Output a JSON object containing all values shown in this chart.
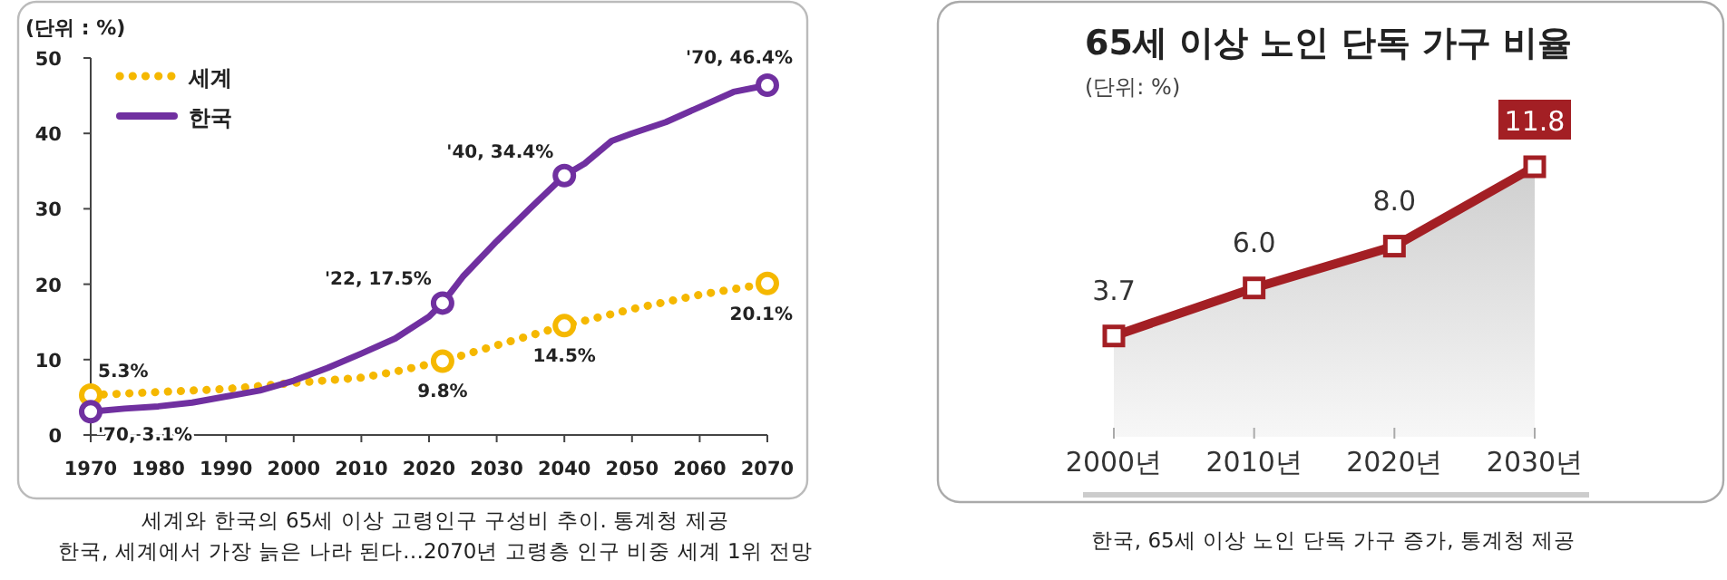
{
  "chart_data": [
    {
      "type": "line",
      "ylabel": "(단위 : %)",
      "x": [
        1970,
        1975,
        1980,
        1985,
        1990,
        1995,
        2000,
        2005,
        2010,
        2015,
        2020,
        2022,
        2025,
        2030,
        2035,
        2040,
        2043,
        2047,
        2050,
        2055,
        2060,
        2065,
        2070
      ],
      "xlim": [
        1970,
        2070
      ],
      "xticks": [
        1970,
        1980,
        1990,
        2000,
        2010,
        2020,
        2030,
        2040,
        2050,
        2060,
        2070
      ],
      "ylim": [
        0,
        50
      ],
      "yticks": [
        0,
        10,
        20,
        30,
        40,
        50
      ],
      "legend": "top left",
      "series": [
        {
          "name": "세계",
          "color": "#f5b800",
          "line_style": "dotted",
          "x": [
            1970,
            1980,
            1990,
            2000,
            2010,
            2015,
            2022,
            2030,
            2040,
            2050,
            2060,
            2070
          ],
          "values": [
            5.3,
            5.7,
            6.1,
            6.9,
            7.6,
            8.4,
            9.8,
            11.9,
            14.5,
            16.7,
            18.6,
            20.1
          ]
        },
        {
          "name": "한국",
          "color": "#7030a0",
          "line_style": "solid",
          "values": [
            3.1,
            3.5,
            3.8,
            4.3,
            5.1,
            5.9,
            7.2,
            8.9,
            10.8,
            12.8,
            15.7,
            17.5,
            21,
            25.7,
            30.1,
            34.4,
            36,
            39,
            40,
            41.5,
            43.5,
            45.5,
            46.4
          ]
        },
        {
          "type": "scatter",
          "color": "#f5b800",
          "marker": "circle",
          "x": [
            1970,
            2022,
            2040,
            2070
          ],
          "values": [
            5.3,
            9.8,
            14.5,
            20.1
          ]
        },
        {
          "type": "scatter",
          "color": "#7030a0",
          "marker": "circle",
          "x": [
            1970,
            2022,
            2040,
            2070
          ],
          "values": [
            3.1,
            17.5,
            34.4,
            46.4
          ]
        }
      ],
      "annotations": [
        {
          "text": "5.3%",
          "x": 1970,
          "y": 5.3
        },
        {
          "text": "'70, 3.1%",
          "x": 1970,
          "y": 3.1
        },
        {
          "text": "'22, 17.5%",
          "x": 2022,
          "y": 17.5
        },
        {
          "text": "9.8%",
          "x": 2022,
          "y": 9.8
        },
        {
          "text": "'40, 34.4%",
          "x": 2040,
          "y": 34.4
        },
        {
          "text": "14.5%",
          "x": 2040,
          "y": 14.5
        },
        {
          "text": "'70, 46.4%",
          "x": 2070,
          "y": 46.4
        },
        {
          "text": "20.1%",
          "x": 2070,
          "y": 20.1
        },
        "세계와 한국의 65세 이상 고령인구 구성비 추이. 통계청 제공",
        "한국, 세계에서 가장 늙은 나라 된다…2070년 고령층 인구 비중 세계 1위 전망"
      ]
    },
    {
      "type": "area",
      "title": "65세 이상 노인 단독 가구 비율",
      "subtitle": "(단위: %)",
      "categories": [
        "2000년",
        "2010년",
        "2020년",
        "2030년"
      ],
      "values": [
        3.7,
        6.0,
        8.0,
        11.8
      ],
      "color": "#a31f24",
      "marker": "square",
      "value_labels": [
        "3.7",
        "6.0",
        "8.0",
        "11.8"
      ],
      "annotations": [
        "한국, 65세 이상 노인 단독 가구 증가, 통계청 제공"
      ]
    }
  ]
}
